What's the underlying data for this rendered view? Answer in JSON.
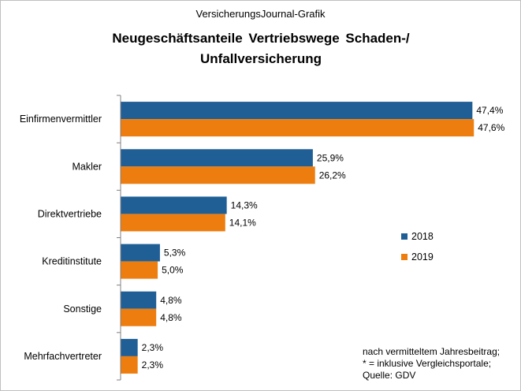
{
  "header": {
    "source": "VersicherungsJournal-Grafik",
    "title_line1": "Neugeschäftsanteile  Vertriebswege  Schaden-/",
    "title_line2": "Unfallversicherung"
  },
  "footnote": {
    "line1": "nach vermitteltem Jahresbeitrag;",
    "line2": "* = inklusive  Vergleichsportale;",
    "line3": "Quelle:  GDV"
  },
  "colors": {
    "2018": "#1F5F96",
    "2019": "#ED7D0E"
  },
  "chart_data": {
    "type": "bar",
    "orientation": "horizontal",
    "title": "Neugeschäftsanteile Vertriebswege Schaden-/Unfallversicherung",
    "xlabel": "",
    "ylabel": "",
    "xlim": [
      0,
      48
    ],
    "grid": false,
    "legend_position": "right",
    "categories": [
      "Einfirmenvermittler",
      "Makler",
      "Direktvertriebe",
      "Kreditinstitute",
      "Sonstige",
      "Mehrfachvertreter"
    ],
    "series": [
      {
        "name": "2018",
        "values": [
          47.4,
          25.9,
          14.3,
          5.3,
          4.8,
          2.3
        ],
        "labels": [
          "47,4%",
          "25,9%",
          "14,3%",
          "5,3%",
          "4,8%",
          "2,3%"
        ]
      },
      {
        "name": "2019",
        "values": [
          47.6,
          26.2,
          14.1,
          5.0,
          4.8,
          2.3
        ],
        "labels": [
          "47,6%",
          "26,2%",
          "14,1%",
          "5,0%",
          "4,8%",
          "2,3%"
        ]
      }
    ]
  }
}
